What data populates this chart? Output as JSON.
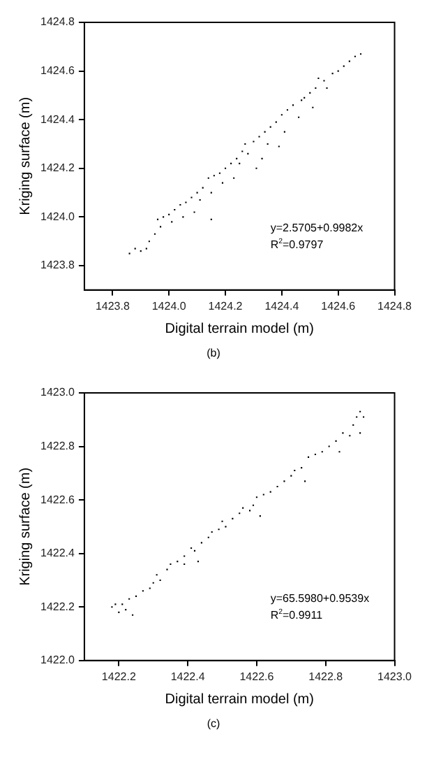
{
  "chart_data": [
    {
      "type": "scatter",
      "xlabel": "Digital terrain model (m)",
      "ylabel": "Kriging surface (m)",
      "color": "#000000",
      "marker": "square",
      "grid": false,
      "legend": false,
      "annotations": [
        "y=2.5705+0.9982x",
        "R$^{2}$=0.9797",
        "(b)"
      ],
      "xlim": [
        1423.7,
        1424.8
      ],
      "ylim": [
        1423.7,
        1424.8
      ],
      "xticks": [
        {
          "value": 1423.8,
          "label": "1423.8"
        },
        {
          "value": 1424.0,
          "label": "1424.0"
        },
        {
          "value": 1424.2,
          "label": "1424.2"
        },
        {
          "value": 1424.4,
          "label": "1424.4"
        },
        {
          "value": 1424.6,
          "label": "1424.6"
        },
        {
          "value": 1424.8,
          "label": "1424.8"
        }
      ],
      "yticks": [
        {
          "value": 1423.8,
          "label": "1423.8"
        },
        {
          "value": 1424.0,
          "label": "1424.0"
        },
        {
          "value": 1424.2,
          "label": "1424.2"
        },
        {
          "value": 1424.4,
          "label": "1424.4"
        },
        {
          "value": 1424.6,
          "label": "1424.6"
        },
        {
          "value": 1424.8,
          "label": "1424.8"
        }
      ],
      "x": [
        1423.86,
        1423.88,
        1423.9,
        1423.92,
        1423.93,
        1423.95,
        1423.96,
        1423.97,
        1423.98,
        1424.0,
        1424.01,
        1424.02,
        1424.04,
        1424.05,
        1424.06,
        1424.08,
        1424.09,
        1424.1,
        1424.11,
        1424.12,
        1424.14,
        1424.15,
        1424.15,
        1424.16,
        1424.18,
        1424.19,
        1424.2,
        1424.22,
        1424.23,
        1424.24,
        1424.25,
        1424.26,
        1424.27,
        1424.28,
        1424.3,
        1424.31,
        1424.32,
        1424.33,
        1424.34,
        1424.35,
        1424.36,
        1424.38,
        1424.39,
        1424.4,
        1424.41,
        1424.42,
        1424.44,
        1424.46,
        1424.47,
        1424.48,
        1424.5,
        1424.51,
        1424.52,
        1424.53,
        1424.55,
        1424.56,
        1424.58,
        1424.6,
        1424.62,
        1424.64,
        1424.66,
        1424.68
      ],
      "values": [
        1423.85,
        1423.87,
        1423.86,
        1423.87,
        1423.9,
        1423.93,
        1423.99,
        1423.96,
        1424.0,
        1424.01,
        1423.98,
        1424.03,
        1424.05,
        1424.0,
        1424.06,
        1424.08,
        1424.02,
        1424.1,
        1424.07,
        1424.12,
        1424.16,
        1423.99,
        1424.1,
        1424.17,
        1424.18,
        1424.14,
        1424.2,
        1424.22,
        1424.16,
        1424.24,
        1424.22,
        1424.27,
        1424.3,
        1424.26,
        1424.31,
        1424.2,
        1424.33,
        1424.24,
        1424.35,
        1424.3,
        1424.37,
        1424.39,
        1424.29,
        1424.42,
        1424.35,
        1424.44,
        1424.46,
        1424.41,
        1424.48,
        1424.49,
        1424.51,
        1424.45,
        1424.53,
        1424.57,
        1424.56,
        1424.53,
        1424.59,
        1424.6,
        1424.62,
        1424.64,
        1424.66,
        1424.67
      ]
    },
    {
      "type": "scatter",
      "xlabel": "Digital terrain model (m)",
      "ylabel": "Kriging surface (m)",
      "color": "#000000",
      "marker": "square",
      "grid": false,
      "legend": false,
      "annotations": [
        "y=65.5980+0.9539x",
        "R$^{2}$=0.9911",
        "(c)"
      ],
      "xlim": [
        1422.1,
        1423.0
      ],
      "ylim": [
        1422.0,
        1423.0
      ],
      "xticks": [
        {
          "value": 1422.2,
          "label": "1422.2"
        },
        {
          "value": 1422.4,
          "label": "1422.4"
        },
        {
          "value": 1422.6,
          "label": "1422.6"
        },
        {
          "value": 1422.8,
          "label": "1422.8"
        },
        {
          "value": 1423.0,
          "label": "1423.0"
        }
      ],
      "yticks": [
        {
          "value": 1422.0,
          "label": "1422.0"
        },
        {
          "value": 1422.2,
          "label": "1422.2"
        },
        {
          "value": 1422.4,
          "label": "1422.4"
        },
        {
          "value": 1422.6,
          "label": "1422.6"
        },
        {
          "value": 1422.8,
          "label": "1422.8"
        },
        {
          "value": 1423.0,
          "label": "1423.0"
        }
      ],
      "x": [
        1422.18,
        1422.19,
        1422.2,
        1422.21,
        1422.22,
        1422.24,
        1422.23,
        1422.25,
        1422.27,
        1422.29,
        1422.3,
        1422.31,
        1422.32,
        1422.34,
        1422.35,
        1422.37,
        1422.39,
        1422.39,
        1422.41,
        1422.42,
        1422.43,
        1422.44,
        1422.46,
        1422.47,
        1422.49,
        1422.5,
        1422.51,
        1422.53,
        1422.55,
        1422.56,
        1422.58,
        1422.59,
        1422.6,
        1422.61,
        1422.62,
        1422.64,
        1422.66,
        1422.68,
        1422.7,
        1422.71,
        1422.73,
        1422.74,
        1422.75,
        1422.77,
        1422.79,
        1422.81,
        1422.83,
        1422.84,
        1422.85,
        1422.87,
        1422.88,
        1422.89,
        1422.9,
        1422.9,
        1422.91
      ],
      "values": [
        1422.2,
        1422.21,
        1422.18,
        1422.21,
        1422.19,
        1422.17,
        1422.23,
        1422.24,
        1422.26,
        1422.27,
        1422.29,
        1422.32,
        1422.3,
        1422.34,
        1422.36,
        1422.37,
        1422.36,
        1422.39,
        1422.42,
        1422.41,
        1422.37,
        1422.44,
        1422.46,
        1422.48,
        1422.49,
        1422.52,
        1422.5,
        1422.53,
        1422.55,
        1422.57,
        1422.56,
        1422.58,
        1422.61,
        1422.54,
        1422.62,
        1422.63,
        1422.65,
        1422.67,
        1422.69,
        1422.71,
        1422.72,
        1422.67,
        1422.76,
        1422.77,
        1422.78,
        1422.8,
        1422.82,
        1422.78,
        1422.85,
        1422.84,
        1422.88,
        1422.91,
        1422.93,
        1422.85,
        1422.91
      ]
    }
  ]
}
